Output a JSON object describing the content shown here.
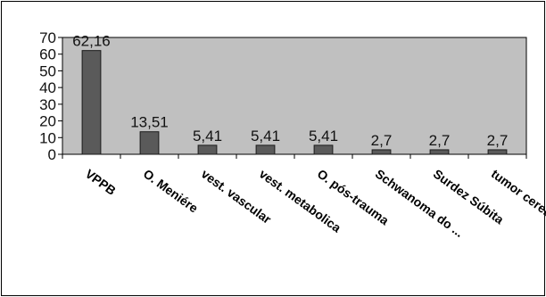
{
  "chart_data": {
    "type": "bar",
    "title": "",
    "xlabel": "",
    "ylabel": "",
    "categories": [
      "VPPB",
      "O. Meniére",
      "vest. vascular",
      "vest. metabolica",
      "O. pós-trauma",
      "Schwanoma do ...",
      "Surdez Súbita",
      "tumor cerebral"
    ],
    "values": [
      62.16,
      13.51,
      5.41,
      5.41,
      5.41,
      2.7,
      2.7,
      2.7
    ],
    "data_labels": [
      "62,16",
      "13,51",
      "5,41",
      "5,41",
      "5,41",
      "2,7",
      "2,7",
      "2,7"
    ],
    "ylim": [
      0,
      70
    ],
    "yticks": [
      0,
      10,
      20,
      30,
      40,
      50,
      60,
      70
    ],
    "grid": false,
    "legend": "none",
    "colors": {
      "plot_background": "#c0c0c0",
      "bar_fill": "#5a5a5a",
      "bar_edge": "#1a1a1a",
      "axis": "#000000",
      "border": "#000000"
    }
  }
}
